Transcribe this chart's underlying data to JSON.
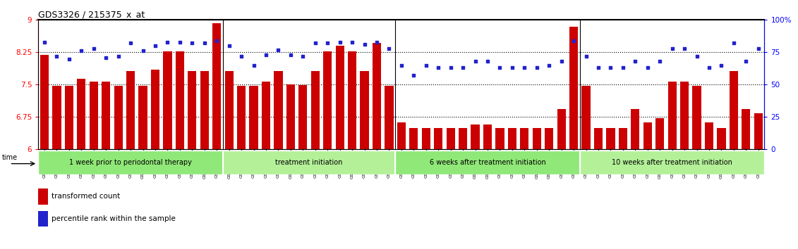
{
  "title": "GDS3326 / 215375_x_at",
  "samples": [
    "GSM155448",
    "GSM155452",
    "GSM155455",
    "GSM155459",
    "GSM155463",
    "GSM155467",
    "GSM155471",
    "GSM155475",
    "GSM155479",
    "GSM155483",
    "GSM155487",
    "GSM155491",
    "GSM155495",
    "GSM155499",
    "GSM155503",
    "GSM155449",
    "GSM155456",
    "GSM155460",
    "GSM155464",
    "GSM155468",
    "GSM155472",
    "GSM155476",
    "GSM155480",
    "GSM155484",
    "GSM155488",
    "GSM155492",
    "GSM155496",
    "GSM155500",
    "GSM155504",
    "GSM155450",
    "GSM155453",
    "GSM155457",
    "GSM155461",
    "GSM155465",
    "GSM155469",
    "GSM155473",
    "GSM155477",
    "GSM155481",
    "GSM155485",
    "GSM155489",
    "GSM155493",
    "GSM155497",
    "GSM155501",
    "GSM155505",
    "GSM155451",
    "GSM155454",
    "GSM155458",
    "GSM155462",
    "GSM155466",
    "GSM155470",
    "GSM155474",
    "GSM155478",
    "GSM155482",
    "GSM155486",
    "GSM155490",
    "GSM155494",
    "GSM155498",
    "GSM155502",
    "GSM155506"
  ],
  "bar_values": [
    8.19,
    7.47,
    7.47,
    7.63,
    7.57,
    7.57,
    7.47,
    7.81,
    7.47,
    7.84,
    8.27,
    8.27,
    7.81,
    7.81,
    8.93,
    7.81,
    7.47,
    7.47,
    7.57,
    7.81,
    7.5,
    7.49,
    7.81,
    8.27,
    8.4,
    8.27,
    7.81,
    8.47,
    7.47,
    6.62,
    6.49,
    6.49,
    6.49,
    6.49,
    6.49,
    6.57,
    6.57,
    6.49,
    6.49,
    6.49,
    6.49,
    6.49,
    6.93,
    8.85,
    7.47,
    6.49,
    6.49,
    6.49,
    6.93,
    6.63,
    6.73,
    7.57,
    7.57,
    7.47,
    6.63,
    6.49,
    7.81,
    6.93,
    6.84
  ],
  "percentile_values": [
    83,
    72,
    70,
    76,
    78,
    71,
    72,
    82,
    76,
    80,
    83,
    83,
    82,
    82,
    84,
    80,
    72,
    65,
    73,
    77,
    73,
    72,
    82,
    82,
    83,
    83,
    81,
    83,
    78,
    65,
    57,
    65,
    63,
    63,
    63,
    68,
    68,
    63,
    63,
    63,
    63,
    65,
    68,
    84,
    72,
    63,
    63,
    63,
    68,
    63,
    68,
    78,
    78,
    72,
    63,
    65,
    82,
    68,
    78
  ],
  "groups": [
    {
      "label": "1 week prior to periodontal therapy",
      "count": 15
    },
    {
      "label": "treatment initiation",
      "count": 14
    },
    {
      "label": "6 weeks after treatment initiation",
      "count": 15
    },
    {
      "label": "10 weeks after treatment initiation",
      "count": 15
    }
  ],
  "ylim_left": [
    6,
    9
  ],
  "ylim_right": [
    0,
    100
  ],
  "yticks_left": [
    6,
    6.75,
    7.5,
    8.25,
    9
  ],
  "ytick_labels_left": [
    "6",
    "6.75",
    "7.5",
    "8.25",
    "9"
  ],
  "yticks_right": [
    0,
    25,
    50,
    75,
    100
  ],
  "ytick_labels_right": [
    "0",
    "25",
    "50",
    "75",
    "100%"
  ],
  "hlines": [
    6.75,
    7.5,
    8.25
  ],
  "bar_color": "#cc0000",
  "dot_color": "#2222cc",
  "bar_bottom": 6.0,
  "bar_width": 0.7,
  "dot_size": 10,
  "band_colors": [
    "#90e878",
    "#b4f098",
    "#90e878",
    "#b4f098"
  ],
  "time_label": "time"
}
